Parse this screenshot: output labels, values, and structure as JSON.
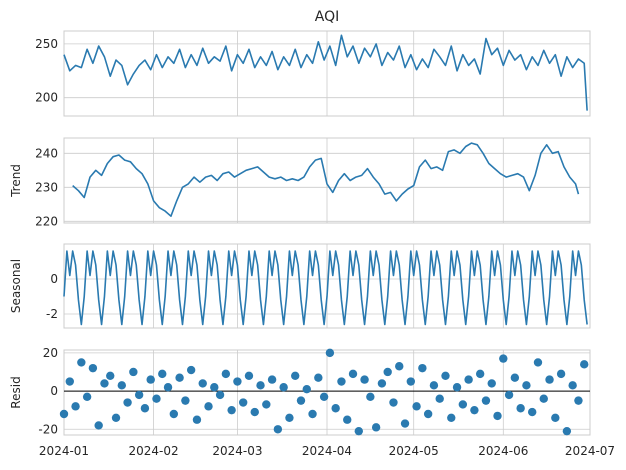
{
  "chart_data": [
    {
      "type": "line",
      "title": "AQI",
      "ylabel": "",
      "yticks": [
        200,
        250
      ],
      "ylim": [
        183,
        262
      ],
      "x": [
        "2024-01-01",
        "2024-01-03",
        "2024-01-05",
        "2024-01-07",
        "2024-01-09",
        "2024-01-11",
        "2024-01-13",
        "2024-01-15",
        "2024-01-17",
        "2024-01-19",
        "2024-01-21",
        "2024-01-23",
        "2024-01-25",
        "2024-01-27",
        "2024-01-29",
        "2024-01-31",
        "2024-02-02",
        "2024-02-04",
        "2024-02-06",
        "2024-02-08",
        "2024-02-10",
        "2024-02-12",
        "2024-02-14",
        "2024-02-16",
        "2024-02-18",
        "2024-02-20",
        "2024-02-22",
        "2024-02-24",
        "2024-02-26",
        "2024-02-28",
        "2024-03-01",
        "2024-03-03",
        "2024-03-05",
        "2024-03-07",
        "2024-03-09",
        "2024-03-11",
        "2024-03-13",
        "2024-03-15",
        "2024-03-17",
        "2024-03-19",
        "2024-03-21",
        "2024-03-23",
        "2024-03-25",
        "2024-03-27",
        "2024-03-29",
        "2024-03-31",
        "2024-04-02",
        "2024-04-04",
        "2024-04-06",
        "2024-04-08",
        "2024-04-10",
        "2024-04-12",
        "2024-04-14",
        "2024-04-16",
        "2024-04-18",
        "2024-04-20",
        "2024-04-22",
        "2024-04-24",
        "2024-04-26",
        "2024-04-28",
        "2024-04-30",
        "2024-05-02",
        "2024-05-04",
        "2024-05-06",
        "2024-05-08",
        "2024-05-10",
        "2024-05-12",
        "2024-05-14",
        "2024-05-16",
        "2024-05-18",
        "2024-05-20",
        "2024-05-22",
        "2024-05-24",
        "2024-05-26",
        "2024-05-28",
        "2024-05-30",
        "2024-06-01",
        "2024-06-03",
        "2024-06-05",
        "2024-06-07",
        "2024-06-09",
        "2024-06-11",
        "2024-06-13",
        "2024-06-15",
        "2024-06-17",
        "2024-06-19",
        "2024-06-21",
        "2024-06-23",
        "2024-06-25",
        "2024-06-27",
        "2024-06-29",
        "2024-06-30"
      ],
      "y": [
        240,
        225,
        230,
        228,
        245,
        232,
        248,
        238,
        220,
        235,
        230,
        212,
        222,
        230,
        235,
        226,
        240,
        228,
        238,
        232,
        245,
        228,
        240,
        230,
        246,
        232,
        238,
        234,
        248,
        225,
        240,
        232,
        245,
        228,
        238,
        230,
        243,
        226,
        238,
        230,
        245,
        228,
        240,
        232,
        252,
        235,
        248,
        230,
        258,
        238,
        248,
        232,
        246,
        238,
        250,
        230,
        242,
        235,
        248,
        228,
        240,
        226,
        236,
        228,
        245,
        238,
        230,
        248,
        225,
        240,
        230,
        236,
        222,
        255,
        240,
        246,
        230,
        244,
        235,
        240,
        226,
        238,
        230,
        244,
        232,
        240,
        220,
        238,
        228,
        236,
        232,
        188
      ]
    },
    {
      "type": "line",
      "title": "",
      "ylabel": "Trend",
      "yticks": [
        220,
        230,
        240
      ],
      "ylim": [
        219.5,
        244.5
      ],
      "x": [
        "2024-01-04",
        "2024-01-06",
        "2024-01-08",
        "2024-01-10",
        "2024-01-12",
        "2024-01-14",
        "2024-01-16",
        "2024-01-18",
        "2024-01-20",
        "2024-01-22",
        "2024-01-24",
        "2024-01-26",
        "2024-01-28",
        "2024-01-30",
        "2024-02-01",
        "2024-02-03",
        "2024-02-05",
        "2024-02-07",
        "2024-02-09",
        "2024-02-11",
        "2024-02-13",
        "2024-02-15",
        "2024-02-17",
        "2024-02-19",
        "2024-02-21",
        "2024-02-23",
        "2024-02-25",
        "2024-02-27",
        "2024-02-29",
        "2024-03-02",
        "2024-03-04",
        "2024-03-06",
        "2024-03-08",
        "2024-03-10",
        "2024-03-12",
        "2024-03-14",
        "2024-03-16",
        "2024-03-18",
        "2024-03-20",
        "2024-03-22",
        "2024-03-24",
        "2024-03-26",
        "2024-03-28",
        "2024-03-30",
        "2024-04-01",
        "2024-04-03",
        "2024-04-05",
        "2024-04-07",
        "2024-04-09",
        "2024-04-11",
        "2024-04-13",
        "2024-04-15",
        "2024-04-17",
        "2024-04-19",
        "2024-04-21",
        "2024-04-23",
        "2024-04-25",
        "2024-04-27",
        "2024-04-29",
        "2024-05-01",
        "2024-05-03",
        "2024-05-05",
        "2024-05-07",
        "2024-05-09",
        "2024-05-11",
        "2024-05-13",
        "2024-05-15",
        "2024-05-17",
        "2024-05-19",
        "2024-05-21",
        "2024-05-23",
        "2024-05-25",
        "2024-05-27",
        "2024-05-29",
        "2024-05-31",
        "2024-06-02",
        "2024-06-04",
        "2024-06-06",
        "2024-06-08",
        "2024-06-10",
        "2024-06-12",
        "2024-06-14",
        "2024-06-16",
        "2024-06-18",
        "2024-06-20",
        "2024-06-22",
        "2024-06-24",
        "2024-06-26",
        "2024-06-27"
      ],
      "y": [
        230.5,
        229,
        227,
        233,
        235,
        233.5,
        237,
        239,
        239.5,
        238,
        237.5,
        235.5,
        234,
        231,
        226,
        224,
        223,
        221.5,
        226,
        230,
        231,
        233,
        231.5,
        233,
        233.5,
        232,
        234,
        234.5,
        233,
        234,
        235,
        235.5,
        236,
        234.5,
        233,
        232.5,
        233,
        232,
        232.5,
        232,
        233,
        236,
        238,
        238.5,
        231,
        228.5,
        232,
        234,
        232,
        233,
        233.5,
        235.5,
        233,
        231,
        228,
        228.5,
        226,
        228,
        229.5,
        230.5,
        236,
        238,
        235.5,
        236,
        235,
        240.5,
        241,
        240,
        242,
        243,
        242.5,
        240,
        237,
        235.5,
        234,
        233,
        233.5,
        234,
        233,
        229,
        233.5,
        240,
        242.5,
        240,
        240.5,
        236,
        233,
        231,
        228
      ]
    },
    {
      "type": "line",
      "title": "",
      "ylabel": "Seasonal",
      "yticks": [
        -2,
        0
      ],
      "ylim": [
        -2.8,
        2.0
      ],
      "period": 7,
      "pattern": [
        -1.0,
        1.6,
        0.2,
        1.6,
        0.8,
        -1.2,
        -2.6
      ],
      "x_start": "2024-01-01",
      "x_end": "2024-06-30"
    },
    {
      "type": "scatter",
      "title": "",
      "ylabel": "Resid",
      "yticks": [
        -20,
        0,
        20
      ],
      "ylim": [
        -23,
        21.5
      ],
      "x": [
        "2024-01-01",
        "2024-01-03",
        "2024-01-05",
        "2024-01-07",
        "2024-01-09",
        "2024-01-11",
        "2024-01-13",
        "2024-01-15",
        "2024-01-17",
        "2024-01-19",
        "2024-01-21",
        "2024-01-23",
        "2024-01-25",
        "2024-01-27",
        "2024-01-29",
        "2024-01-31",
        "2024-02-02",
        "2024-02-04",
        "2024-02-06",
        "2024-02-08",
        "2024-02-10",
        "2024-02-12",
        "2024-02-14",
        "2024-02-16",
        "2024-02-18",
        "2024-02-20",
        "2024-02-22",
        "2024-02-24",
        "2024-02-26",
        "2024-02-28",
        "2024-03-01",
        "2024-03-03",
        "2024-03-05",
        "2024-03-07",
        "2024-03-09",
        "2024-03-11",
        "2024-03-13",
        "2024-03-15",
        "2024-03-17",
        "2024-03-19",
        "2024-03-21",
        "2024-03-23",
        "2024-03-25",
        "2024-03-27",
        "2024-03-29",
        "2024-03-31",
        "2024-04-02",
        "2024-04-04",
        "2024-04-06",
        "2024-04-08",
        "2024-04-10",
        "2024-04-12",
        "2024-04-14",
        "2024-04-16",
        "2024-04-18",
        "2024-04-20",
        "2024-04-22",
        "2024-04-24",
        "2024-04-26",
        "2024-04-28",
        "2024-04-30",
        "2024-05-02",
        "2024-05-04",
        "2024-05-06",
        "2024-05-08",
        "2024-05-10",
        "2024-05-12",
        "2024-05-14",
        "2024-05-16",
        "2024-05-18",
        "2024-05-20",
        "2024-05-22",
        "2024-05-24",
        "2024-05-26",
        "2024-05-28",
        "2024-05-30",
        "2024-06-01",
        "2024-06-03",
        "2024-06-05",
        "2024-06-07",
        "2024-06-09",
        "2024-06-11",
        "2024-06-13",
        "2024-06-15",
        "2024-06-17",
        "2024-06-19",
        "2024-06-21",
        "2024-06-23",
        "2024-06-25",
        "2024-06-27",
        "2024-06-29"
      ],
      "y": [
        -12,
        5,
        -8,
        15,
        -3,
        12,
        -18,
        4,
        8,
        -14,
        3,
        -6,
        10,
        -2,
        -9,
        6,
        -4,
        9,
        2,
        -12,
        7,
        -5,
        11,
        -15,
        4,
        -8,
        2,
        -2,
        9,
        -10,
        5,
        -6,
        8,
        -11,
        3,
        -7,
        6,
        -20,
        2,
        -14,
        8,
        -5,
        1,
        -12,
        7,
        -3,
        20,
        -9,
        5,
        -15,
        9,
        -21,
        6,
        -3,
        -19,
        4,
        10,
        -6,
        13,
        -17,
        5,
        -8,
        12,
        -12,
        3,
        -4,
        8,
        -14,
        2,
        -7,
        6,
        -10,
        9,
        -5,
        4,
        -13,
        17,
        -2,
        7,
        -9,
        3,
        -11,
        15,
        -4,
        6,
        -14,
        9,
        -21,
        3,
        -5,
        14
      ]
    }
  ],
  "x_axis": {
    "ticks": [
      "2024-01",
      "2024-02",
      "2024-03",
      "2024-04",
      "2024-05",
      "2024-06",
      "2024-07"
    ],
    "range": [
      "2024-01-01",
      "2024-07-01"
    ]
  }
}
